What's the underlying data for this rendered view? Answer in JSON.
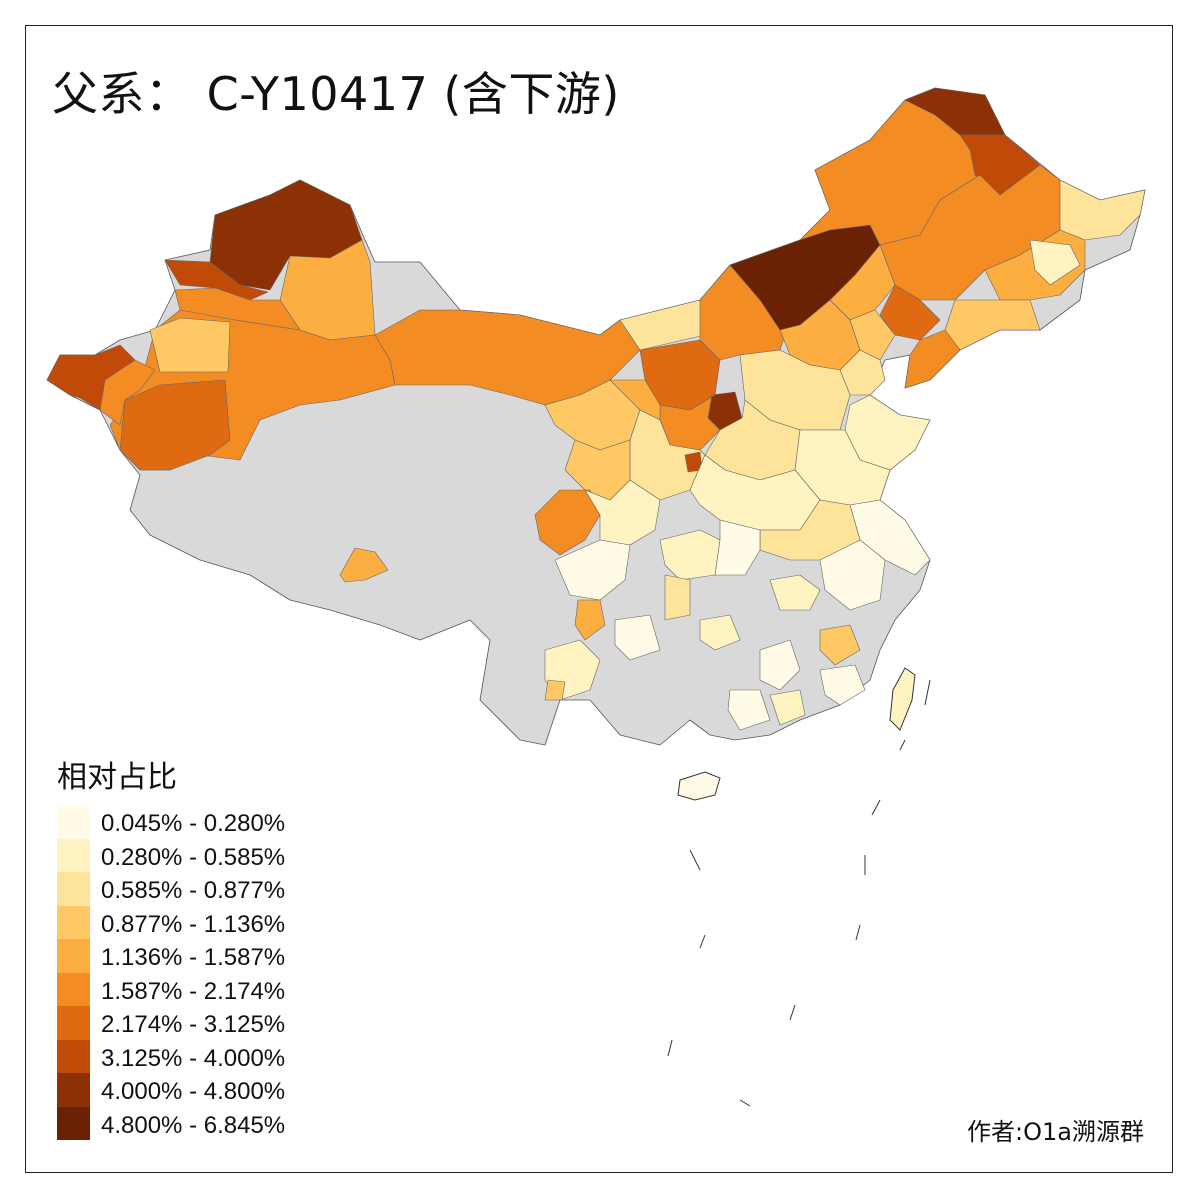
{
  "title": "父系： C-Y10417 (含下游)",
  "legend": {
    "title": "相对占比",
    "items": [
      {
        "label": "0.045% - 0.280%",
        "color": "#fffbe6"
      },
      {
        "label": "0.280% - 0.585%",
        "color": "#fff3c2"
      },
      {
        "label": "0.585% - 0.877%",
        "color": "#fee39b"
      },
      {
        "label": "0.877% - 1.136%",
        "color": "#fec965"
      },
      {
        "label": "1.136% - 1.587%",
        "color": "#fdae40"
      },
      {
        "label": "1.587% - 2.174%",
        "color": "#f48c24"
      },
      {
        "label": "2.174% - 3.125%",
        "color": "#e06a12"
      },
      {
        "label": "3.125% - 4.000%",
        "color": "#c24a08"
      },
      {
        "label": "4.000% - 4.800%",
        "color": "#8c3005"
      },
      {
        "label": "4.800% - 6.845%",
        "color": "#6b2204"
      }
    ]
  },
  "no_data_color": "#d9d9d9",
  "credit": "作者:O1a溯源群"
}
